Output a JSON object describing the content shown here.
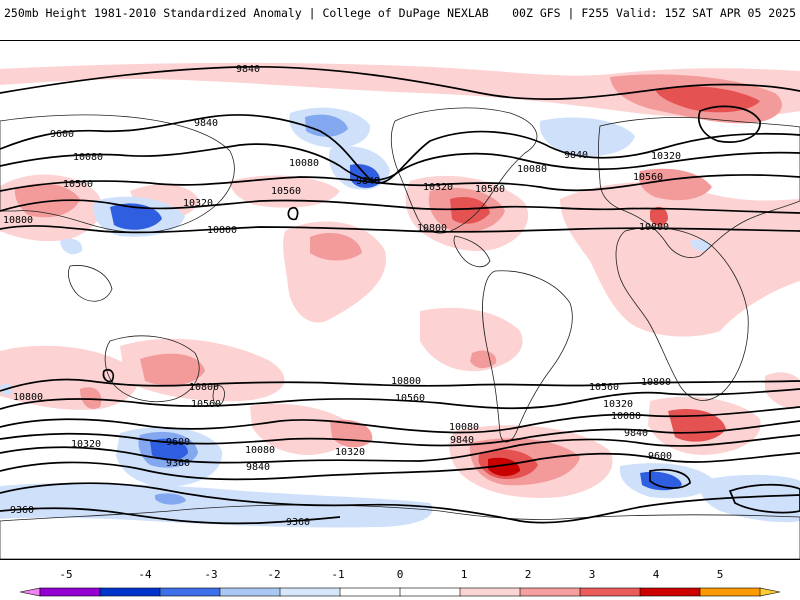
{
  "header": {
    "left_title": "250mb Height 1981-2010 Standardized Anomaly | College of DuPage NEXLAB",
    "right_title": "00Z GFS | F255 Valid: 15Z SAT APR 05 2025"
  },
  "contour_labels": [
    "9840",
    "9600",
    "9840",
    "10080",
    "10080",
    "9840",
    "10560",
    "10320",
    "10800",
    "10800",
    "10560",
    "10320",
    "10560",
    "10800",
    "10080",
    "9840",
    "10320",
    "10560",
    "10800",
    "10800",
    "10800",
    "10800",
    "10560",
    "10560",
    "10320",
    "10080",
    "9840",
    "10080",
    "10320",
    "9840",
    "9600",
    "9360",
    "10800",
    "10560",
    "10320",
    "10080",
    "9840",
    "9600",
    "9360",
    "9360"
  ],
  "legend": {
    "tick_labels": [
      "-5",
      "-4",
      "-3",
      "-2",
      "-1",
      "0",
      "1",
      "2",
      "3",
      "4",
      "5"
    ],
    "colors": [
      "#ee82ee",
      "#9400d3",
      "#0033cc",
      "#3d6fe8",
      "#a8c8f5",
      "#d6e6fb",
      "#ffffff",
      "#ffffff",
      "#fcd4d4",
      "#f4a0a0",
      "#ea5c5c",
      "#cc0000",
      "#ff9900",
      "#ffcc33"
    ]
  },
  "colors": {
    "neg1": "#cfe0fa",
    "neg2": "#84a8ef",
    "neg3": "#2f5fe0",
    "pos1": "#fcd2d2",
    "pos2": "#f39a9a",
    "pos3": "#e45252",
    "pos4": "#c80000"
  }
}
